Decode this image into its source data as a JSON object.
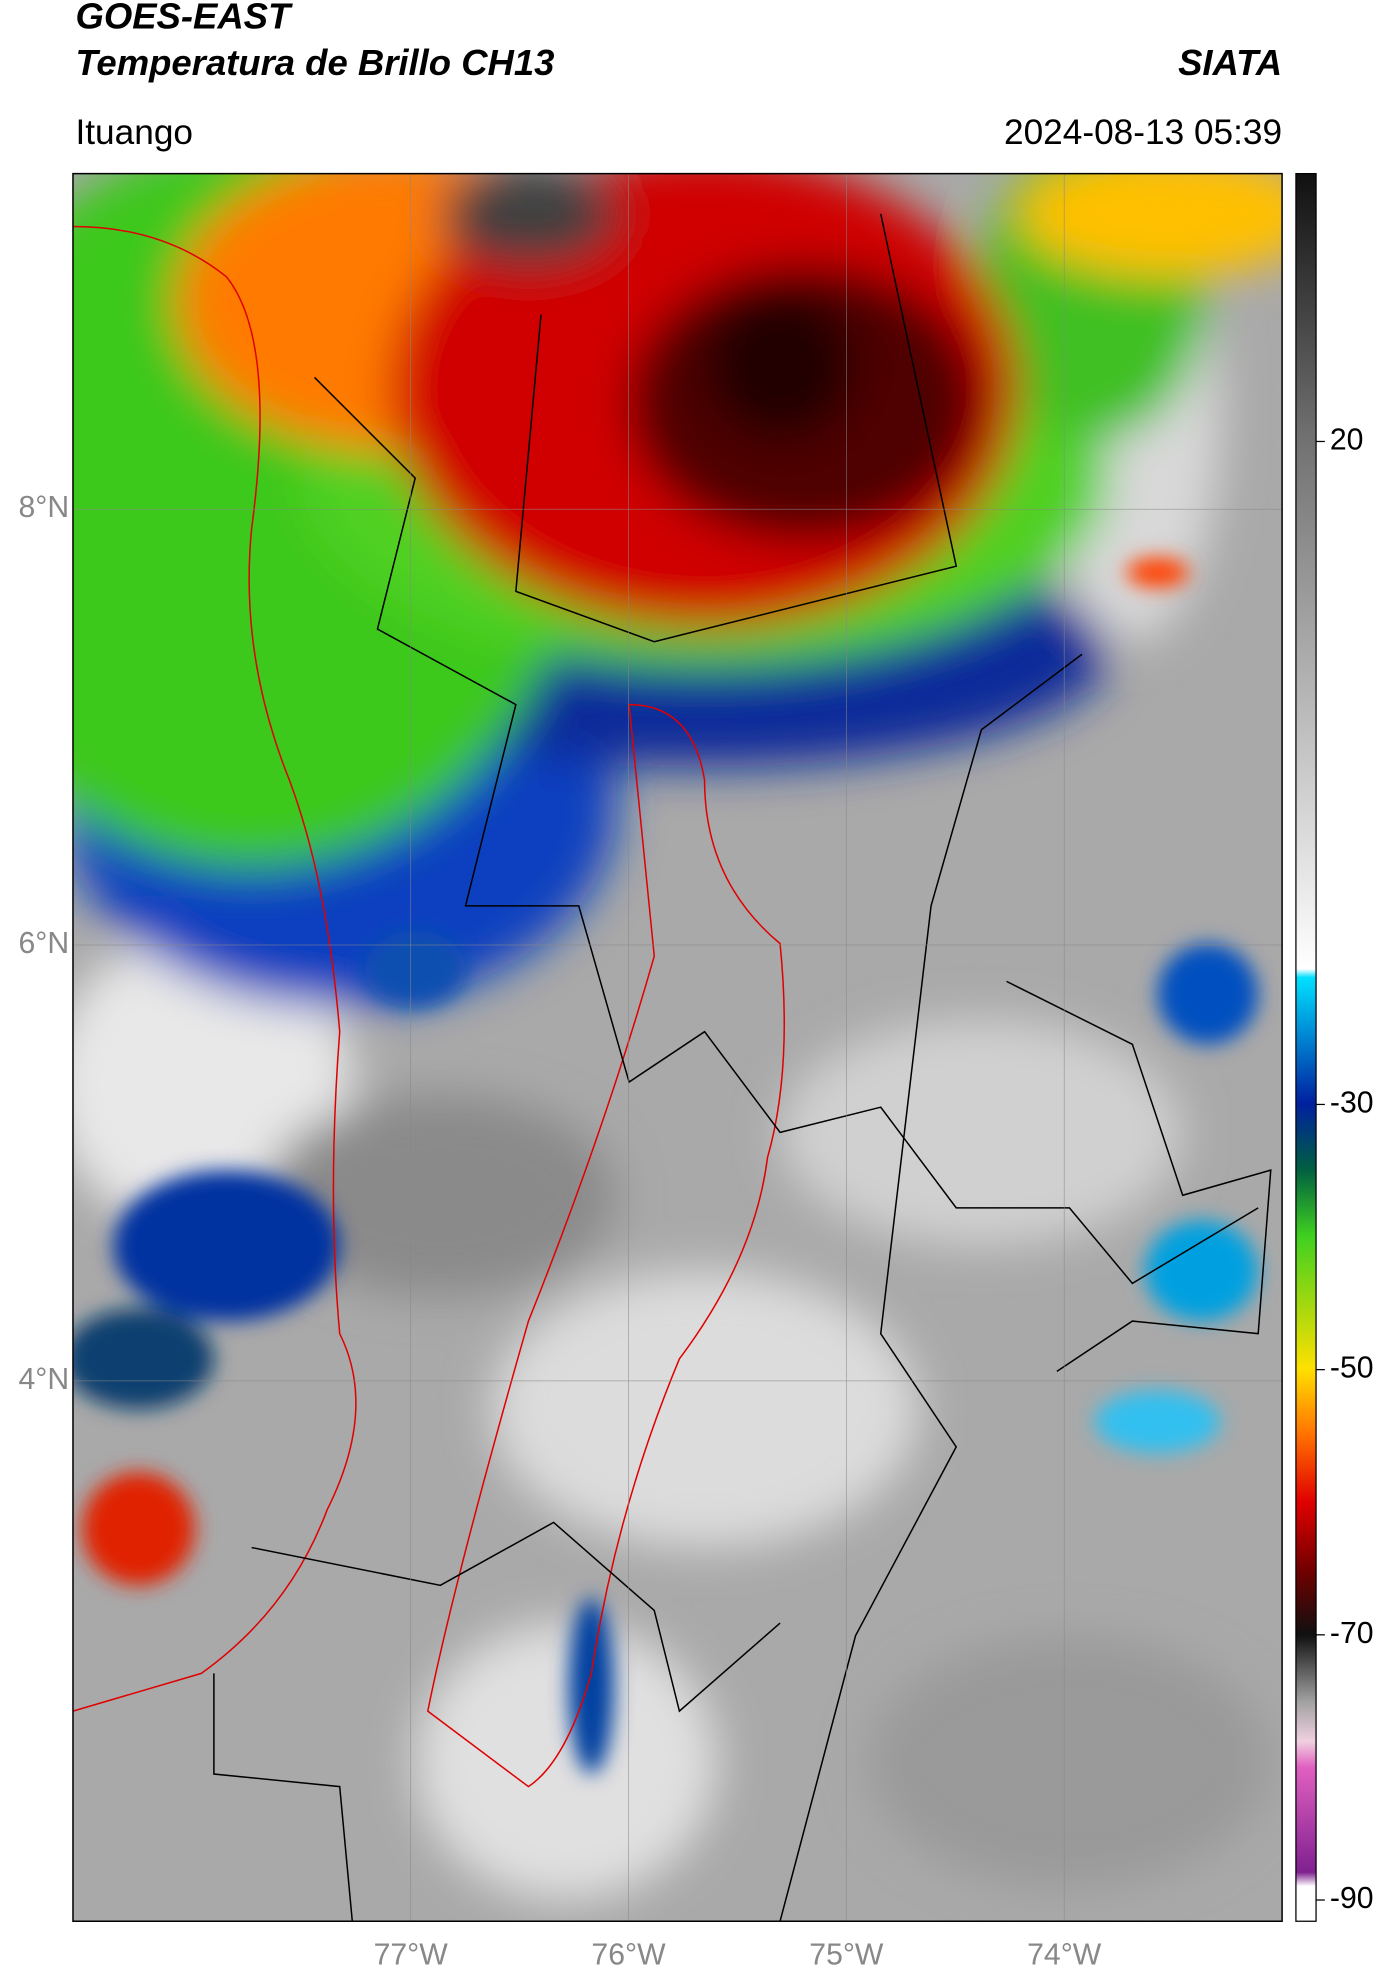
{
  "header": {
    "title": "GOES-EAST",
    "subtitle": "Temperatura de Brillo CH13",
    "source": "SIATA",
    "location": "Ituango",
    "datetime": "2024-08-13 05:39"
  },
  "map": {
    "lon_range": [
      -78.55,
      -73.0
    ],
    "lat_range": [
      1.52,
      9.54
    ],
    "lon_ticks": [
      {
        "value": -77,
        "label": "77°W"
      },
      {
        "value": -76,
        "label": "76°W"
      },
      {
        "value": -75,
        "label": "75°W"
      },
      {
        "value": -74,
        "label": "74°W"
      }
    ],
    "lat_ticks": [
      {
        "value": 8,
        "label": "8°N"
      },
      {
        "value": 6,
        "label": "6°N"
      },
      {
        "value": 4,
        "label": "4°N"
      }
    ],
    "grid": true
  },
  "colorbar": {
    "range": [
      -91.6,
      40.2
    ],
    "ticks": [
      20,
      -30,
      -50,
      -70,
      -90
    ]
  }
}
